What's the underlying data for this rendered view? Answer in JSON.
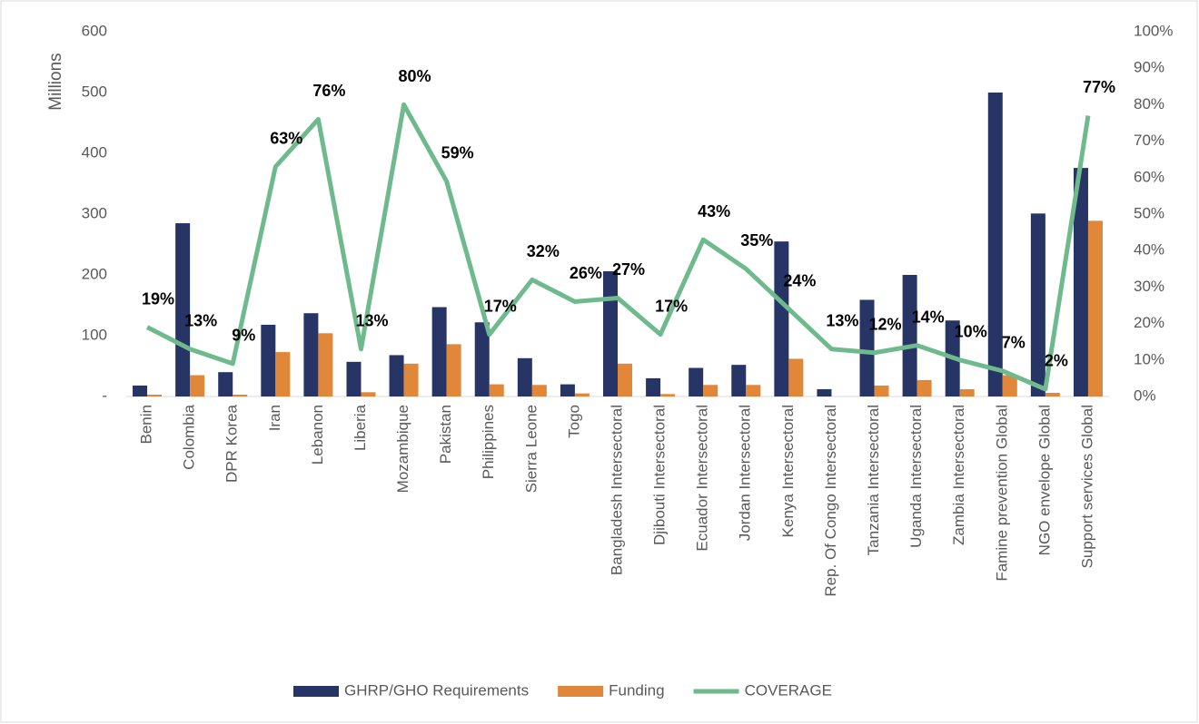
{
  "chart_data": {
    "type": "bar_line",
    "y_label": "Millions",
    "categories": [
      "Benin",
      "Colombia",
      "DPR Korea",
      "Iran",
      "Lebanon",
      "Liberia",
      "Mozambique",
      "Pakistan",
      "Philippines",
      "Sierra Leone",
      "Togo",
      "Bangladesh Intersectoral",
      "Djibouti Intersectoral",
      "Ecuador Intersectoral",
      "Jordan Intersectoral",
      "Kenya Intersectoral",
      "Rep. Of Congo Intersectoral",
      "Tanzania Intersectoral",
      "Uganda Intersectoral",
      "Zambia Intersectoral",
      "Famine prevention Global",
      "NGO envelope Global",
      "Support services Global"
    ],
    "series": [
      {
        "name": "GHRP/GHO Requirements",
        "type": "bar",
        "color": "#263466",
        "values": [
          18,
          285,
          40,
          118,
          137,
          57,
          68,
          147,
          122,
          63,
          20,
          206,
          30,
          47,
          52,
          255,
          12,
          159,
          200,
          125,
          500,
          301,
          376
        ]
      },
      {
        "name": "Funding",
        "type": "bar",
        "color": "#e0873a",
        "values": [
          3,
          35,
          3,
          73,
          104,
          7,
          54,
          86,
          20,
          19,
          5,
          54,
          4,
          19,
          19,
          62,
          0,
          18,
          27,
          12,
          35,
          6,
          289
        ]
      },
      {
        "name": "COVERAGE",
        "type": "line",
        "axis": "y2",
        "color": "#6fba8c",
        "values": [
          19,
          13,
          9,
          63,
          76,
          13,
          80,
          59,
          17,
          32,
          26,
          27,
          17,
          43,
          35,
          24,
          13,
          12,
          14,
          10,
          7,
          2,
          77
        ],
        "value_labels": [
          "19%",
          "13%",
          "9%",
          "63%",
          "76%",
          "13%",
          "80%",
          "59%",
          "17%",
          "32%",
          "26%",
          "27%",
          "17%",
          "43%",
          "35%",
          "24%",
          "13%",
          "12%",
          "14%",
          "10%",
          "7%",
          "2%",
          "77%"
        ]
      }
    ],
    "ylim": [
      0,
      600
    ],
    "yticks": [
      {
        "value": 0,
        "label": "-"
      },
      100,
      200,
      300,
      400,
      500,
      600
    ],
    "y2lim": [
      0,
      100
    ],
    "y2ticks": [
      {
        "value": 0,
        "label": "0%"
      },
      {
        "value": 10,
        "label": "10%"
      },
      {
        "value": 20,
        "label": "20%"
      },
      {
        "value": 30,
        "label": "30%"
      },
      {
        "value": 40,
        "label": "40%"
      },
      {
        "value": 50,
        "label": "50%"
      },
      {
        "value": 60,
        "label": "60%"
      },
      {
        "value": 70,
        "label": "70%"
      },
      {
        "value": 80,
        "label": "80%"
      },
      {
        "value": 90,
        "label": "90%"
      },
      {
        "value": 100,
        "label": "100%"
      }
    ],
    "legend": "bottom"
  }
}
